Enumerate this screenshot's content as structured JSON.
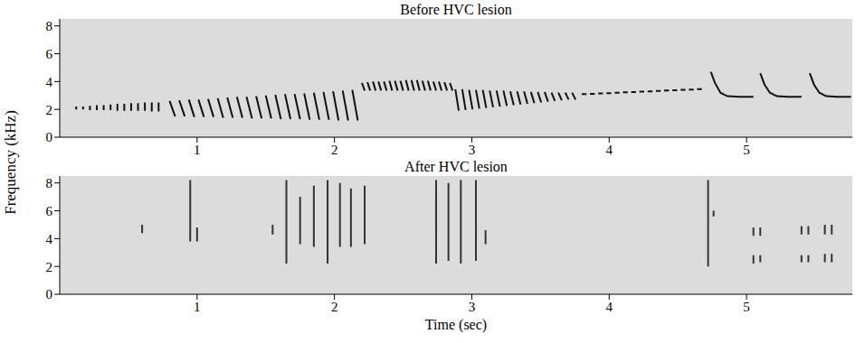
{
  "chart_data": [
    {
      "type": "line",
      "title": "Before HVC lesion",
      "ylabel": "Frequency (kHz)",
      "color": "#111111",
      "grid": false,
      "xlim": [
        0,
        5.77
      ],
      "xticks": [
        1,
        2,
        3,
        4,
        5
      ],
      "ylim": [
        0,
        8.5
      ],
      "yticks": [
        0,
        2,
        4,
        6,
        8
      ],
      "x": [
        0.12,
        0.12,
        0.12,
        0.17,
        0.17,
        0.17,
        0.22,
        0.22,
        0.22,
        0.27,
        0.27,
        0.27,
        0.32,
        0.32,
        0.32,
        0.37,
        0.37,
        0.37,
        0.42,
        0.42,
        0.42,
        0.47,
        0.47,
        0.47,
        0.52,
        0.52,
        0.52,
        0.57,
        0.57,
        0.57,
        0.62,
        0.62,
        0.62,
        0.67,
        0.67,
        0.67,
        0.72,
        0.72,
        0.72,
        0.8,
        0.84,
        0.84,
        0.87,
        0.91,
        0.91,
        0.94,
        0.98,
        0.98,
        1.01,
        1.05,
        1.05,
        1.08,
        1.12,
        1.12,
        1.15,
        1.19,
        1.19,
        1.22,
        1.26,
        1.26,
        1.29,
        1.33,
        1.33,
        1.36,
        1.4,
        1.4,
        1.43,
        1.47,
        1.47,
        1.5,
        1.54,
        1.54,
        1.57,
        1.61,
        1.61,
        1.64,
        1.68,
        1.68,
        1.71,
        1.75,
        1.75,
        1.78,
        1.82,
        1.82,
        1.85,
        1.89,
        1.89,
        1.92,
        1.96,
        1.96,
        1.99,
        2.03,
        2.03,
        2.06,
        2.1,
        2.1,
        2.13,
        2.17,
        2.17,
        2.2,
        2.22,
        2.22,
        2.24,
        2.26,
        2.26,
        2.28,
        2.3,
        2.3,
        2.32,
        2.34,
        2.34,
        2.36,
        2.38,
        2.38,
        2.4,
        2.42,
        2.42,
        2.44,
        2.46,
        2.46,
        2.48,
        2.5,
        2.5,
        2.52,
        2.54,
        2.54,
        2.56,
        2.58,
        2.58,
        2.6,
        2.62,
        2.62,
        2.64,
        2.66,
        2.66,
        2.68,
        2.7,
        2.7,
        2.72,
        2.74,
        2.74,
        2.76,
        2.78,
        2.78,
        2.8,
        2.82,
        2.82,
        2.84,
        2.86,
        2.86,
        2.88,
        2.905,
        2.905,
        2.93,
        2.955,
        2.955,
        2.98,
        3.005,
        3.005,
        3.03,
        3.055,
        3.055,
        3.08,
        3.105,
        3.105,
        3.13,
        3.155,
        3.155,
        3.18,
        3.205,
        3.205,
        3.23,
        3.255,
        3.255,
        3.28,
        3.305,
        3.305,
        3.33,
        3.355,
        3.355,
        3.38,
        3.405,
        3.405,
        3.43,
        3.455,
        3.455,
        3.48,
        3.505,
        3.505,
        3.53,
        3.555,
        3.555,
        3.58,
        3.605,
        3.605,
        3.63,
        3.655,
        3.655,
        3.68,
        3.705,
        3.705,
        3.73,
        3.755,
        3.755,
        3.8,
        3.835,
        3.835,
        3.86,
        3.895,
        3.895,
        3.92,
        3.955,
        3.955,
        3.98,
        4.015,
        4.015,
        4.04,
        4.075,
        4.075,
        4.1,
        4.135,
        4.135,
        4.16,
        4.195,
        4.195,
        4.22,
        4.255,
        4.255,
        4.28,
        4.315,
        4.315,
        4.34,
        4.375,
        4.375,
        4.4,
        4.435,
        4.435,
        4.46,
        4.495,
        4.495,
        4.52,
        4.555,
        4.555,
        4.58,
        4.615,
        4.615,
        4.64,
        4.675,
        4.675,
        4.74,
        4.77,
        4.81,
        4.86,
        4.95,
        5.05,
        5.05,
        5.1,
        5.13,
        5.17,
        5.22,
        5.3,
        5.4,
        5.4,
        5.46,
        5.49,
        5.53,
        5.58,
        5.66,
        5.76
      ],
      "values": [
        2.2,
        2.0,
        null,
        2.2,
        2.0,
        null,
        2.25,
        1.95,
        null,
        2.3,
        1.95,
        null,
        2.3,
        1.95,
        null,
        2.35,
        1.95,
        null,
        2.4,
        1.9,
        null,
        2.4,
        1.9,
        null,
        2.45,
        1.9,
        null,
        2.45,
        1.9,
        null,
        2.5,
        1.9,
        null,
        2.5,
        1.85,
        null,
        2.5,
        1.85,
        null,
        2.6,
        1.5,
        null,
        2.65,
        1.5,
        null,
        2.7,
        1.45,
        null,
        2.7,
        1.45,
        null,
        2.75,
        1.45,
        null,
        2.8,
        1.4,
        null,
        2.85,
        1.4,
        null,
        2.9,
        1.4,
        null,
        2.9,
        1.35,
        null,
        2.95,
        1.35,
        null,
        3.0,
        1.35,
        null,
        3.05,
        1.3,
        null,
        3.1,
        1.3,
        null,
        3.1,
        1.3,
        null,
        3.15,
        1.25,
        null,
        3.2,
        1.25,
        null,
        3.25,
        1.25,
        null,
        3.3,
        1.2,
        null,
        3.35,
        1.2,
        null,
        3.4,
        1.2,
        null,
        3.9,
        3.35,
        null,
        3.95,
        3.35,
        null,
        4.0,
        3.35,
        null,
        4.0,
        3.35,
        null,
        4.0,
        3.35,
        null,
        4.05,
        3.35,
        null,
        4.05,
        3.35,
        null,
        4.05,
        3.35,
        null,
        4.1,
        3.35,
        null,
        4.1,
        3.35,
        null,
        4.1,
        3.35,
        null,
        4.05,
        3.35,
        null,
        4.05,
        3.35,
        null,
        4.0,
        3.35,
        null,
        4.0,
        3.35,
        null,
        3.95,
        3.35,
        null,
        3.9,
        3.35,
        null,
        3.45,
        1.9,
        null,
        3.45,
        1.95,
        null,
        3.4,
        2.0,
        null,
        3.4,
        2.05,
        null,
        3.4,
        2.1,
        null,
        3.35,
        2.15,
        null,
        3.35,
        2.2,
        null,
        3.35,
        2.25,
        null,
        3.3,
        2.3,
        null,
        3.3,
        2.35,
        null,
        3.3,
        2.4,
        null,
        3.25,
        2.45,
        null,
        3.25,
        2.5,
        null,
        3.25,
        2.55,
        null,
        3.2,
        2.6,
        null,
        3.2,
        2.65,
        null,
        3.2,
        2.7,
        null,
        3.2,
        2.7,
        null,
        3.1,
        3.1,
        null,
        3.12,
        3.12,
        null,
        3.15,
        3.15,
        null,
        3.17,
        3.17,
        null,
        3.2,
        3.2,
        null,
        3.22,
        3.22,
        null,
        3.25,
        3.25,
        null,
        3.27,
        3.27,
        null,
        3.3,
        3.3,
        null,
        3.32,
        3.32,
        null,
        3.35,
        3.35,
        null,
        3.37,
        3.37,
        null,
        3.4,
        3.4,
        null,
        3.42,
        3.42,
        null,
        3.45,
        3.45,
        null,
        4.7,
        3.9,
        3.2,
        2.95,
        2.9,
        2.9,
        null,
        4.6,
        3.8,
        3.2,
        2.95,
        2.9,
        2.9,
        null,
        4.6,
        3.8,
        3.2,
        2.95,
        2.9,
        2.9
      ]
    },
    {
      "type": "line",
      "title": "After HVC lesion",
      "xlabel": "Time (sec)",
      "color": "#333333",
      "grid": false,
      "xlim": [
        0,
        5.77
      ],
      "xticks": [
        1,
        2,
        3,
        4,
        5
      ],
      "ylim": [
        0,
        8.5
      ],
      "yticks": [
        0,
        2,
        4,
        6,
        8
      ],
      "x": [
        0.6,
        0.6,
        0.6,
        0.95,
        0.95,
        0.95,
        1.0,
        1.0,
        1.0,
        1.55,
        1.55,
        1.55,
        1.65,
        1.65,
        1.65,
        1.75,
        1.75,
        1.75,
        1.85,
        1.85,
        1.85,
        1.95,
        1.95,
        1.95,
        2.04,
        2.04,
        2.04,
        2.12,
        2.12,
        2.12,
        2.22,
        2.22,
        2.22,
        2.74,
        2.74,
        2.74,
        2.83,
        2.83,
        2.83,
        2.92,
        2.92,
        2.92,
        3.03,
        3.03,
        3.03,
        3.1,
        3.1,
        3.1,
        4.72,
        4.72,
        4.72,
        4.76,
        4.76,
        4.76,
        5.05,
        5.05,
        5.05,
        5.05,
        5.05,
        5.05,
        5.1,
        5.1,
        5.1,
        5.1,
        5.1,
        5.1,
        5.4,
        5.4,
        5.4,
        5.4,
        5.4,
        5.4,
        5.45,
        5.45,
        5.45,
        5.45,
        5.45,
        5.45,
        5.57,
        5.57,
        5.57,
        5.57,
        5.57,
        5.57,
        5.62,
        5.62,
        5.62,
        5.62,
        5.62
      ],
      "values": [
        5.0,
        4.4,
        null,
        8.2,
        3.8,
        null,
        4.8,
        3.8,
        null,
        5.0,
        4.3,
        null,
        8.2,
        2.2,
        null,
        7.0,
        3.6,
        null,
        7.8,
        3.4,
        null,
        8.2,
        2.2,
        null,
        8.0,
        3.4,
        null,
        7.6,
        3.4,
        null,
        7.8,
        3.6,
        null,
        8.2,
        2.2,
        null,
        8.0,
        2.4,
        null,
        8.2,
        2.2,
        null,
        8.2,
        2.4,
        null,
        4.6,
        3.6,
        null,
        8.2,
        2.0,
        null,
        6.0,
        5.6,
        null,
        4.8,
        4.2,
        null,
        2.8,
        2.2,
        null,
        4.8,
        4.2,
        null,
        2.8,
        2.3,
        null,
        4.9,
        4.3,
        null,
        2.8,
        2.3,
        null,
        4.9,
        4.3,
        null,
        2.8,
        2.3,
        null,
        5.0,
        4.3,
        null,
        2.9,
        2.3,
        null,
        5.0,
        4.3,
        null,
        2.9,
        2.3
      ]
    }
  ]
}
